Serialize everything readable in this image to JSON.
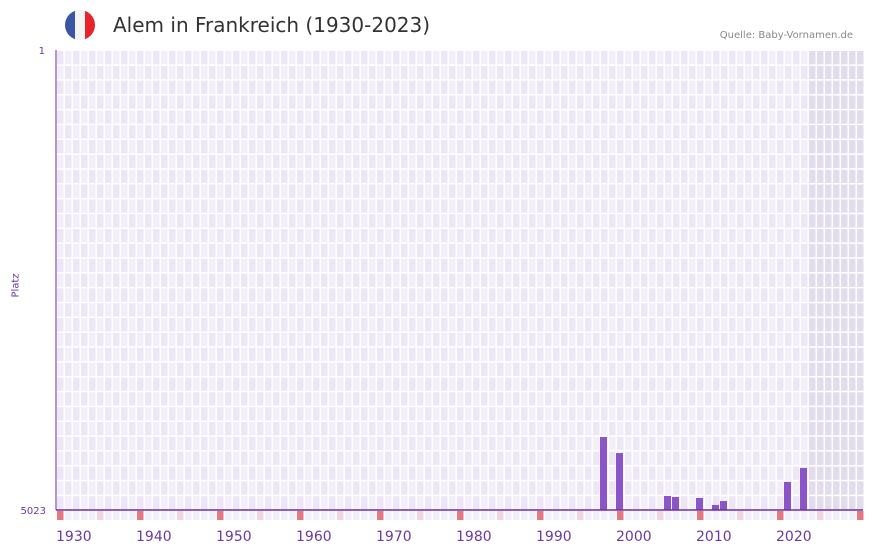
{
  "title": "Alem in Frankreich (1930-2023)",
  "source": "Quelle: Baby-Vornamen.de",
  "colors": {
    "bar": "#8b55c8",
    "axis": "#6a2ea0",
    "decade": "#e57880",
    "half": "#f4d4dc",
    "future": "#e2dcec"
  },
  "chart_data": {
    "type": "bar",
    "title": "Alem in Frankreich (1930-2023)",
    "ylabel": "Platz",
    "ylim": [
      5023,
      1
    ],
    "yticks": [
      "1",
      "5023"
    ],
    "xlim": [
      1930,
      2030
    ],
    "xticks": [
      "1930",
      "1940",
      "1950",
      "1960",
      "1970",
      "1980",
      "1990",
      "2000",
      "2010",
      "2020"
    ],
    "x": [
      1998,
      2000,
      2006,
      2007,
      2010,
      2012,
      2013,
      2021,
      2023
    ],
    "values": [
      4226,
      4401,
      4870,
      4881,
      4892,
      4968,
      4925,
      4717,
      4564
    ]
  }
}
